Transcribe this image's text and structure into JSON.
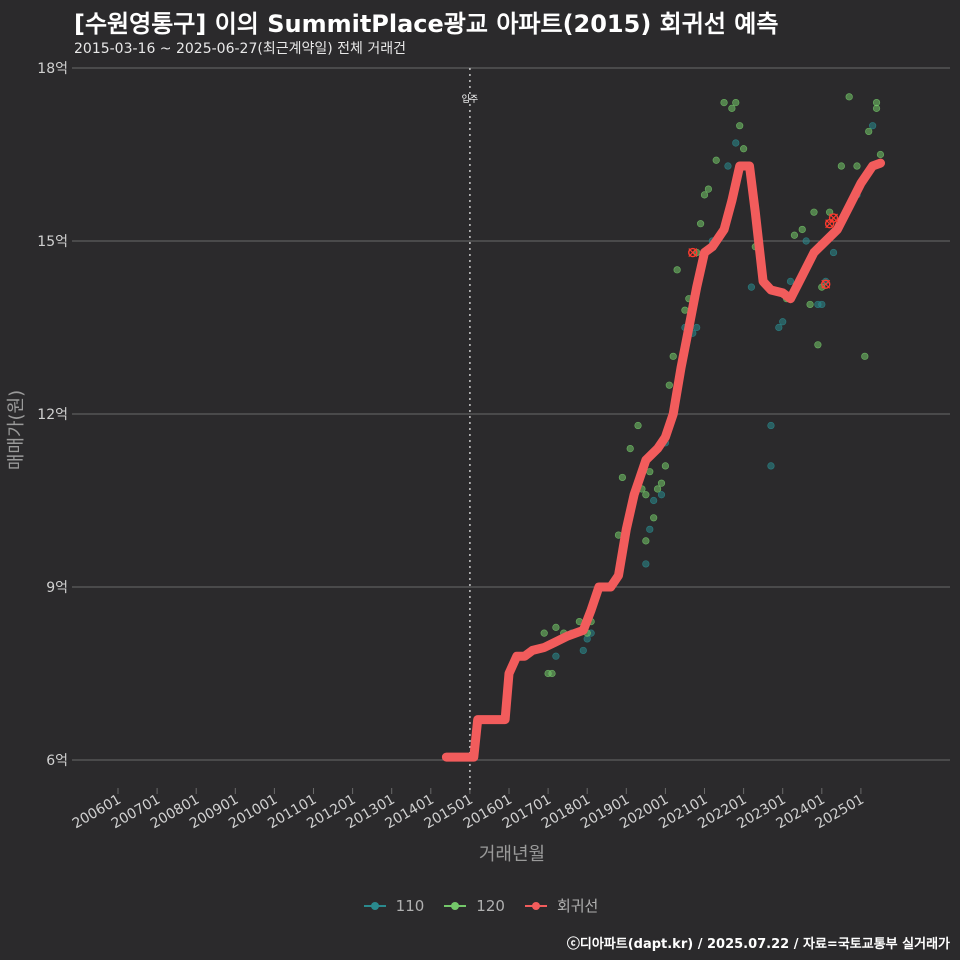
{
  "header": {
    "title": "[수원영통구] 이의 SummitPlace광교 아파트(2015) 회귀선 예측",
    "subtitle": "2015-03-16 ~ 2025-06-27(최근계약일) 전체 거래건"
  },
  "footer": "ⓒ디아파트(dapt.kr) / 2025.07.22 / 자료=국토교통부 실거래가",
  "colors": {
    "background": "#2b2a2c",
    "grid": "#6a6a6a",
    "s110": "#2a8a8e",
    "s120": "#74c86a",
    "regression": "#f25c5c"
  },
  "chart_data": {
    "type": "scatter",
    "xlabel": "거래년월",
    "ylabel": "매매가(원)",
    "ylim": [
      6,
      18
    ],
    "y_ticks": [
      {
        "value": 6,
        "label": "6억"
      },
      {
        "value": 9,
        "label": "9억"
      },
      {
        "value": 12,
        "label": "12억"
      },
      {
        "value": 15,
        "label": "15억"
      },
      {
        "value": 18,
        "label": "18억"
      }
    ],
    "x_ticks": [
      "200601",
      "200701",
      "200801",
      "200901",
      "201001",
      "201101",
      "201201",
      "201301",
      "201401",
      "201501",
      "201601",
      "201701",
      "201801",
      "201901",
      "202001",
      "202101",
      "202201",
      "202301",
      "202401",
      "202501"
    ],
    "annotation": {
      "x": 2015.0,
      "label": "입주"
    },
    "series": [
      {
        "name": "110",
        "color": "#2a8a8e",
        "points": [
          [
            2017.1,
            8.0
          ],
          [
            2017.2,
            7.8
          ],
          [
            2017.3,
            8.1
          ],
          [
            2017.6,
            8.2
          ],
          [
            2017.9,
            7.9
          ],
          [
            2018.0,
            8.1
          ],
          [
            2018.1,
            8.2
          ],
          [
            2019.5,
            9.4
          ],
          [
            2019.6,
            10.0
          ],
          [
            2019.7,
            10.5
          ],
          [
            2019.9,
            10.6
          ],
          [
            2020.0,
            11.5
          ],
          [
            2020.2,
            12.0
          ],
          [
            2020.5,
            13.5
          ],
          [
            2020.7,
            13.4
          ],
          [
            2020.8,
            13.5
          ],
          [
            2021.2,
            15.0
          ],
          [
            2021.6,
            16.3
          ],
          [
            2021.8,
            16.7
          ],
          [
            2022.2,
            14.2
          ],
          [
            2022.7,
            11.8
          ],
          [
            2022.7,
            11.1
          ],
          [
            2022.9,
            13.5
          ],
          [
            2023.0,
            13.6
          ],
          [
            2023.2,
            14.3
          ],
          [
            2023.6,
            15.0
          ],
          [
            2023.9,
            13.9
          ],
          [
            2024.0,
            13.9
          ],
          [
            2024.1,
            14.3
          ],
          [
            2024.3,
            14.8
          ],
          [
            2024.9,
            15.8
          ],
          [
            2025.3,
            17.0
          ]
        ]
      },
      {
        "name": "120",
        "color": "#74c86a",
        "points": [
          [
            2016.9,
            8.2
          ],
          [
            2017.0,
            7.5
          ],
          [
            2017.1,
            7.5
          ],
          [
            2017.2,
            8.3
          ],
          [
            2017.4,
            8.2
          ],
          [
            2017.8,
            8.4
          ],
          [
            2018.0,
            8.2
          ],
          [
            2018.1,
            8.4
          ],
          [
            2018.8,
            9.9
          ],
          [
            2018.9,
            10.9
          ],
          [
            2019.1,
            11.4
          ],
          [
            2019.3,
            11.8
          ],
          [
            2019.4,
            10.7
          ],
          [
            2019.5,
            9.8
          ],
          [
            2019.5,
            10.6
          ],
          [
            2019.6,
            11.0
          ],
          [
            2019.7,
            10.2
          ],
          [
            2019.8,
            10.7
          ],
          [
            2019.9,
            10.8
          ],
          [
            2020.0,
            11.1
          ],
          [
            2020.1,
            12.5
          ],
          [
            2020.2,
            13.0
          ],
          [
            2020.3,
            14.5
          ],
          [
            2020.5,
            13.8
          ],
          [
            2020.6,
            14.0
          ],
          [
            2020.8,
            14.8
          ],
          [
            2020.9,
            15.3
          ],
          [
            2021.0,
            15.8
          ],
          [
            2021.1,
            15.9
          ],
          [
            2021.3,
            16.4
          ],
          [
            2021.5,
            17.4
          ],
          [
            2021.7,
            17.3
          ],
          [
            2021.8,
            17.4
          ],
          [
            2021.9,
            17.0
          ],
          [
            2022.0,
            16.6
          ],
          [
            2022.3,
            14.9
          ],
          [
            2023.1,
            14.0
          ],
          [
            2023.3,
            15.1
          ],
          [
            2023.5,
            15.2
          ],
          [
            2023.7,
            13.9
          ],
          [
            2023.8,
            15.5
          ],
          [
            2023.9,
            13.2
          ],
          [
            2024.0,
            14.2
          ],
          [
            2024.2,
            15.5
          ],
          [
            2024.5,
            16.3
          ],
          [
            2024.7,
            17.5
          ],
          [
            2024.9,
            16.3
          ],
          [
            2025.0,
            16.0
          ],
          [
            2025.1,
            13.0
          ],
          [
            2025.2,
            16.9
          ],
          [
            2025.4,
            17.3
          ],
          [
            2025.4,
            17.4
          ],
          [
            2025.5,
            16.5
          ]
        ]
      }
    ],
    "regression": {
      "name": "회귀선",
      "color": "#f25c5c",
      "points": [
        [
          2014.4,
          6.05
        ],
        [
          2015.1,
          6.05
        ],
        [
          2015.2,
          6.7
        ],
        [
          2015.9,
          6.7
        ],
        [
          2016.0,
          7.5
        ],
        [
          2016.2,
          7.8
        ],
        [
          2016.4,
          7.8
        ],
        [
          2016.6,
          7.9
        ],
        [
          2016.9,
          7.95
        ],
        [
          2017.2,
          8.05
        ],
        [
          2017.5,
          8.15
        ],
        [
          2017.9,
          8.25
        ],
        [
          2018.1,
          8.6
        ],
        [
          2018.3,
          9.0
        ],
        [
          2018.6,
          9.0
        ],
        [
          2018.8,
          9.2
        ],
        [
          2019.0,
          10.0
        ],
        [
          2019.2,
          10.6
        ],
        [
          2019.5,
          11.2
        ],
        [
          2019.8,
          11.4
        ],
        [
          2020.0,
          11.6
        ],
        [
          2020.2,
          12.0
        ],
        [
          2020.4,
          12.8
        ],
        [
          2020.6,
          13.5
        ],
        [
          2020.8,
          14.2
        ],
        [
          2021.0,
          14.8
        ],
        [
          2021.2,
          14.9
        ],
        [
          2021.5,
          15.2
        ],
        [
          2021.7,
          15.7
        ],
        [
          2021.9,
          16.3
        ],
        [
          2022.15,
          16.3
        ],
        [
          2022.3,
          15.5
        ],
        [
          2022.5,
          14.3
        ],
        [
          2022.7,
          14.15
        ],
        [
          2023.0,
          14.1
        ],
        [
          2023.2,
          14.0
        ],
        [
          2023.5,
          14.4
        ],
        [
          2023.8,
          14.8
        ],
        [
          2024.1,
          15.0
        ],
        [
          2024.4,
          15.2
        ],
        [
          2024.7,
          15.6
        ],
        [
          2025.0,
          16.0
        ],
        [
          2025.3,
          16.3
        ],
        [
          2025.5,
          16.35
        ]
      ],
      "markers": [
        [
          2020.7,
          14.8
        ],
        [
          2024.2,
          15.3
        ],
        [
          2024.1,
          14.25
        ],
        [
          2024.3,
          15.4
        ]
      ]
    },
    "legend": [
      "110",
      "120",
      "회귀선"
    ],
    "legend_position": "bottom",
    "grid": true
  }
}
